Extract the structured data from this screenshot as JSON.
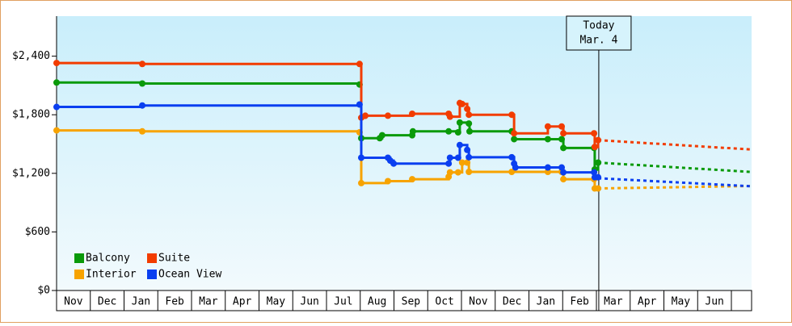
{
  "chart_data": {
    "type": "step-line",
    "categories": [
      "Nov",
      "Dec",
      "Jan",
      "Feb",
      "Mar",
      "Apr",
      "May",
      "Jun",
      "Jul",
      "Aug",
      "Sep",
      "Oct",
      "Nov",
      "Dec",
      "Jan",
      "Feb",
      "Mar",
      "Apr",
      "May",
      "Jun"
    ],
    "xlim": [
      0,
      20.6
    ],
    "ylim": [
      0,
      2810
    ],
    "yticks": [
      {
        "value": 0,
        "label": "$0"
      },
      {
        "value": 600,
        "label": "$600"
      },
      {
        "value": 1200,
        "label": "$1,200"
      },
      {
        "value": 1800,
        "label": "$1,800"
      },
      {
        "value": 2400,
        "label": "$2,400"
      }
    ],
    "today": {
      "x": 16.07,
      "label": "Today",
      "date": "Mar. 4"
    },
    "series": [
      {
        "name": "Balcony",
        "color": "#0a9a0a",
        "x": [
          0,
          2.54,
          8.98,
          9.03,
          9.58,
          9.65,
          10.54,
          10.56,
          11.62,
          11.9,
          11.95,
          12.22,
          12.24,
          13.49,
          13.56,
          14.56,
          14.97,
          15.02,
          15.93,
          15.95,
          16.05
        ],
        "values": [
          2130,
          2120,
          2110,
          1560,
          1560,
          1590,
          1590,
          1630,
          1630,
          1620,
          1720,
          1710,
          1630,
          1630,
          1550,
          1550,
          1550,
          1460,
          1460,
          1240,
          1310
        ],
        "forecast": {
          "x": [
            16.05,
            20.55
          ],
          "values": [
            1310,
            1215
          ]
        }
      },
      {
        "name": "Suite",
        "color": "#f23c00",
        "x": [
          0,
          2.54,
          8.98,
          9.03,
          9.15,
          9.82,
          10.54,
          11.62,
          11.66,
          11.95,
          12.02,
          12.17,
          12.22,
          13.49,
          13.56,
          14.56,
          14.97,
          15.02,
          15.93,
          15.95,
          16.05
        ],
        "values": [
          2330,
          2320,
          2320,
          1770,
          1790,
          1790,
          1810,
          1810,
          1780,
          1920,
          1910,
          1860,
          1800,
          1800,
          1610,
          1680,
          1680,
          1610,
          1610,
          1470,
          1540
        ],
        "forecast": {
          "x": [
            16.05,
            20.55
          ],
          "values": [
            1540,
            1445
          ]
        }
      },
      {
        "name": "Interior",
        "color": "#f7a300",
        "x": [
          0,
          2.54,
          8.98,
          9.03,
          9.82,
          10.54,
          11.62,
          11.66,
          11.9,
          12.02,
          12.17,
          12.22,
          13.49,
          14.56,
          14.97,
          15.02,
          15.93,
          15.95,
          16.05
        ],
        "values": [
          1640,
          1630,
          1620,
          1100,
          1120,
          1140,
          1165,
          1210,
          1210,
          1310,
          1310,
          1215,
          1215,
          1215,
          1215,
          1140,
          1140,
          1045,
          1045
        ],
        "forecast": {
          "x": [
            16.05,
            20.55
          ],
          "values": [
            1045,
            1070
          ]
        }
      },
      {
        "name": "Ocean View",
        "color": "#0a3ff0",
        "x": [
          0,
          2.54,
          8.98,
          9.03,
          9.82,
          9.89,
          9.99,
          11.62,
          11.66,
          11.9,
          11.95,
          12.17,
          12.22,
          13.49,
          13.56,
          13.6,
          14.56,
          14.97,
          15.02,
          15.93,
          15.95,
          16.05
        ],
        "values": [
          1880,
          1895,
          1905,
          1360,
          1360,
          1330,
          1300,
          1300,
          1360,
          1360,
          1490,
          1440,
          1365,
          1365,
          1300,
          1260,
          1260,
          1260,
          1210,
          1210,
          1160,
          1160
        ],
        "forecast": {
          "x": [
            16.05,
            20.55
          ],
          "values": [
            1150,
            1068
          ]
        }
      }
    ]
  }
}
